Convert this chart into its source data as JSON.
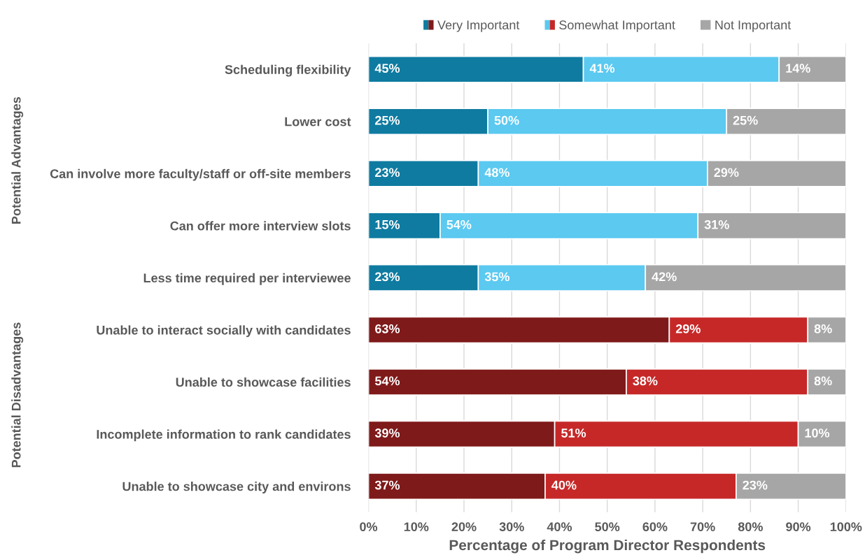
{
  "chart_data": {
    "type": "bar",
    "orientation": "horizontal",
    "stacked": true,
    "xlabel": "Percentage of Program Director Respondents",
    "categories": [
      "Scheduling flexibility",
      "Lower cost",
      "Can involve more faculty/staff or off-site members",
      "Can offer more interview slots",
      "Less time required per interviewee",
      "Unable to interact socially with candidates",
      "Unable to showcase facilities",
      "Incomplete information to rank candidates",
      "Unable to showcase city and environs"
    ],
    "series": [
      {
        "name": "Very Important",
        "colors": [
          "#0f7ba1",
          "#0f7ba1",
          "#0f7ba1",
          "#0f7ba1",
          "#0f7ba1",
          "#7f1a1a",
          "#7f1a1a",
          "#7f1a1a",
          "#7f1a1a"
        ],
        "values": [
          45,
          25,
          23,
          15,
          23,
          63,
          54,
          39,
          37
        ],
        "value_labels": [
          "45%",
          "25%",
          "23%",
          "15%",
          "23%",
          "63%",
          "54%",
          "39%",
          "37%"
        ]
      },
      {
        "name": "Somewhat Important",
        "colors": [
          "#5bc9f0",
          "#5bc9f0",
          "#5bc9f0",
          "#5bc9f0",
          "#5bc9f0",
          "#c62828",
          "#c62828",
          "#c62828",
          "#c62828"
        ],
        "values": [
          41,
          50,
          48,
          54,
          35,
          29,
          38,
          51,
          40
        ],
        "value_labels": [
          "41%",
          "50%",
          "48%",
          "54%",
          "35%",
          "29%",
          "38%",
          "51%",
          "40%"
        ]
      },
      {
        "name": "Not Important",
        "colors": [
          "#a6a6a6",
          "#a6a6a6",
          "#a6a6a6",
          "#a6a6a6",
          "#a6a6a6",
          "#a6a6a6",
          "#a6a6a6",
          "#a6a6a6",
          "#a6a6a6"
        ],
        "values": [
          14,
          25,
          29,
          31,
          42,
          8,
          8,
          10,
          23
        ],
        "value_labels": [
          "14%",
          "25%",
          "29%",
          "31%",
          "42%",
          "8%",
          "8%",
          "10%",
          "23%"
        ]
      }
    ],
    "xlim": [
      0,
      100
    ],
    "xticks": [
      {
        "value": 0,
        "label": "0%"
      },
      {
        "value": 10,
        "label": "10%"
      },
      {
        "value": 20,
        "label": "20%"
      },
      {
        "value": 30,
        "label": "30%"
      },
      {
        "value": 40,
        "label": "40%"
      },
      {
        "value": 50,
        "label": "50%"
      },
      {
        "value": 60,
        "label": "60%"
      },
      {
        "value": 70,
        "label": "70%"
      },
      {
        "value": 80,
        "label": "80%"
      },
      {
        "value": 90,
        "label": "90%"
      },
      {
        "value": 100,
        "label": "100%"
      }
    ],
    "grid": "x",
    "legend": "top",
    "annotations": [
      "Potential Advantages",
      "Potential Disadvantages"
    ]
  }
}
